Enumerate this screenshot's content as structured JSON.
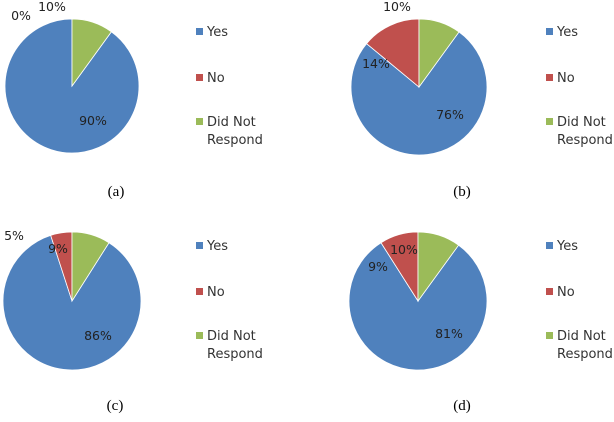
{
  "chart_data": [
    {
      "type": "pie",
      "caption": "(a)",
      "categories": [
        "Yes",
        "No",
        "Did Not Respond"
      ],
      "values": [
        90,
        0,
        10
      ],
      "labels": [
        "90%",
        "0%",
        "10%"
      ],
      "colors": [
        "#4F81BD",
        "#C0504D",
        "#9BBB59"
      ],
      "legend_position": "right"
    },
    {
      "type": "pie",
      "caption": "(b)",
      "categories": [
        "Yes",
        "No",
        "Did Not Respond"
      ],
      "values": [
        76,
        14,
        10
      ],
      "labels": [
        "76%",
        "14%",
        "10%"
      ],
      "colors": [
        "#4F81BD",
        "#C0504D",
        "#9BBB59"
      ],
      "legend_position": "right"
    },
    {
      "type": "pie",
      "caption": "(c)",
      "categories": [
        "Yes",
        "No",
        "Did Not Respond"
      ],
      "values": [
        86,
        5,
        9
      ],
      "labels": [
        "86%",
        "5%",
        "9%"
      ],
      "colors": [
        "#4F81BD",
        "#C0504D",
        "#9BBB59"
      ],
      "legend_position": "right"
    },
    {
      "type": "pie",
      "caption": "(d)",
      "categories": [
        "Yes",
        "No",
        "Did Not Respond"
      ],
      "values": [
        81,
        9,
        10
      ],
      "labels": [
        "81%",
        "9%",
        "10%"
      ],
      "colors": [
        "#4F81BD",
        "#C0504D",
        "#9BBB59"
      ],
      "legend_position": "right"
    }
  ]
}
